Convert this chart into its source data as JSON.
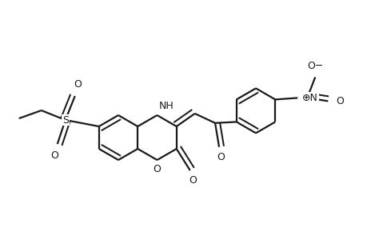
{
  "bg_color": "#ffffff",
  "line_color": "#1a1a1a",
  "lw": 1.6,
  "fs": 9.0,
  "figsize": [
    4.6,
    3.0
  ],
  "dpi": 100,
  "xlim": [
    0,
    460
  ],
  "ylim": [
    0,
    300
  ],
  "ring_r": 28
}
